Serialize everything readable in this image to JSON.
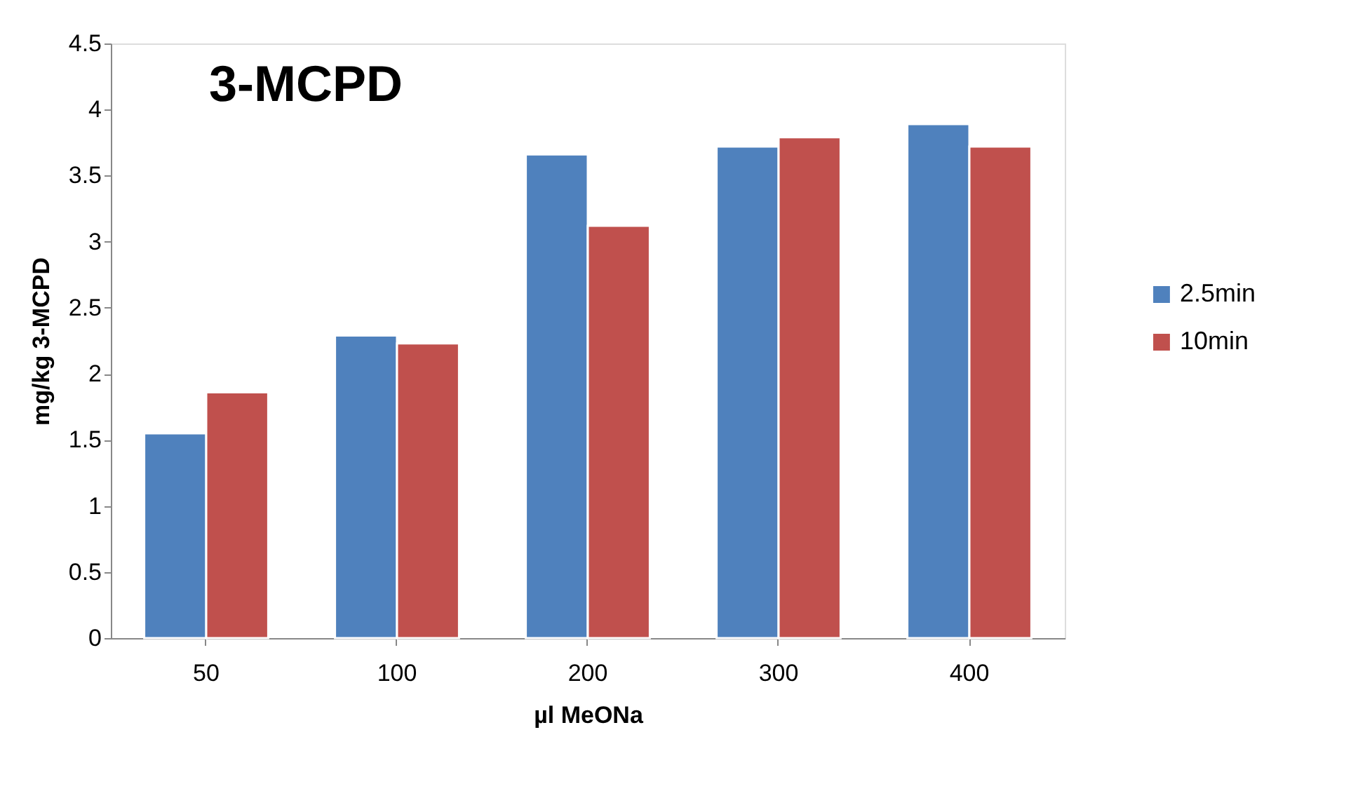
{
  "chart_data": {
    "type": "bar",
    "title": "3-MCPD",
    "xlabel": "µl MeONa",
    "ylabel": "mg/kg 3-MCPD",
    "categories": [
      "50",
      "100",
      "200",
      "300",
      "400"
    ],
    "series": [
      {
        "name": "2.5min",
        "color": "#4f81bd",
        "values": [
          1.55,
          2.29,
          3.66,
          3.72,
          3.89
        ]
      },
      {
        "name": "10min",
        "color": "#c0504d",
        "values": [
          1.86,
          2.23,
          3.12,
          3.79,
          3.72
        ]
      }
    ],
    "ylim": [
      0,
      4.5
    ],
    "yticks": [
      0,
      0.5,
      1,
      1.5,
      2,
      2.5,
      3,
      3.5,
      4,
      4.5
    ],
    "grid": false,
    "legend": "right"
  }
}
